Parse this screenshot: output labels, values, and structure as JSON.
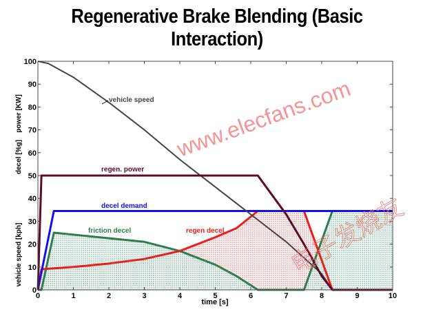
{
  "chart_data": {
    "type": "line",
    "title": "Regenerative Brake Blending (Basic Interaction)",
    "xlabel": "time [s]",
    "ylabels": [
      "vehicle speed [kph]",
      "decel [%g]",
      "power [KW]"
    ],
    "xlim": [
      0,
      10
    ],
    "ylim": [
      0,
      100
    ],
    "xticks": [
      0,
      1,
      2,
      3,
      4,
      5,
      6,
      7,
      8,
      9,
      10
    ],
    "yticks": [
      0,
      10,
      20,
      30,
      40,
      50,
      60,
      70,
      80,
      90,
      100
    ],
    "grid": false,
    "series": [
      {
        "name": "vehicle speed",
        "color": "#444444",
        "x": [
          0,
          0.3,
          1,
          2,
          3,
          4,
          5,
          6,
          7,
          8,
          8.3,
          10
        ],
        "y": [
          100,
          99,
          93,
          82,
          70,
          57,
          45,
          33,
          21,
          7,
          0,
          0
        ]
      },
      {
        "name": "regen. power",
        "color": "#5a0a2a",
        "x": [
          0,
          0.1,
          6.2,
          7,
          7.5,
          8,
          8.3,
          10
        ],
        "y": [
          0,
          50,
          50,
          33,
          20,
          6,
          0,
          0
        ]
      },
      {
        "name": "decel demand",
        "color": "#1010ee",
        "x": [
          0,
          0.45,
          10
        ],
        "y": [
          0,
          34.5,
          34.5
        ]
      },
      {
        "name": "friction decel",
        "color": "#2e7d4f",
        "fill": "#bfe0d0",
        "x": [
          0,
          0.1,
          0.45,
          3,
          4,
          5,
          5.6,
          6,
          6.2,
          7.5,
          8.3,
          10
        ],
        "y": [
          0,
          0,
          25,
          21,
          17,
          11,
          6,
          2,
          0,
          0,
          34.5,
          34.5
        ]
      },
      {
        "name": "regen decel",
        "color": "#ee1c1c",
        "fill": "#f7c6c6",
        "x": [
          0,
          0.1,
          1,
          2,
          3,
          4,
          5,
          5.6,
          6,
          6.2,
          7.5,
          8.3,
          10
        ],
        "y": [
          0,
          9,
          10,
          11.5,
          13.5,
          17,
          23,
          27,
          32,
          34.5,
          34.5,
          0,
          0
        ]
      }
    ]
  },
  "watermarks": [
    "www.elecfans.com",
    "电子发烧友"
  ]
}
